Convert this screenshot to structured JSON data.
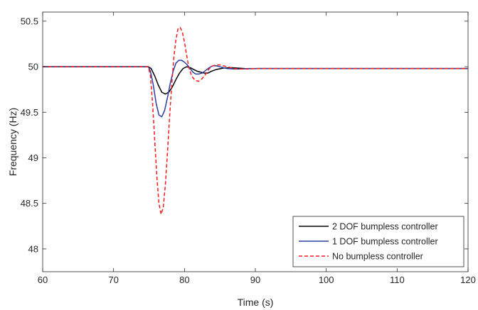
{
  "chart_data": {
    "type": "line",
    "title": "",
    "xlabel": "Time (s)",
    "ylabel": "Frequency (Hz)",
    "xlim": [
      60,
      120
    ],
    "ylim": [
      47.75,
      50.6
    ],
    "xticks": [
      "60",
      "70",
      "80",
      "90",
      "100",
      "110",
      "120"
    ],
    "yticks": [
      "48",
      "48.5",
      "49",
      "49.5",
      "50",
      "50.5"
    ],
    "xtick_values": [
      60,
      70,
      80,
      90,
      100,
      110,
      120
    ],
    "ytick_values": [
      48,
      48.5,
      49,
      49.5,
      50,
      50.5
    ],
    "grid": false,
    "legend_position": "bottom-right",
    "series": [
      {
        "name": "2 DOF bumpless controller",
        "color": "#000000",
        "dash": "solid",
        "x": [
          60,
          74.9,
          75.3,
          75.8,
          76.3,
          76.8,
          77.3,
          77.8,
          78.3,
          78.8,
          79.3,
          79.8,
          80.3,
          80.8,
          81.3,
          81.8,
          82.3,
          82.8,
          83.3,
          83.8,
          84.5,
          85.5,
          86.5,
          87.5,
          88.5,
          89.5,
          90.5,
          92,
          95,
          100,
          110,
          120
        ],
        "y": [
          50.0,
          50.0,
          49.98,
          49.9,
          49.8,
          49.72,
          49.7,
          49.72,
          49.78,
          49.86,
          49.93,
          49.98,
          50.0,
          49.99,
          49.97,
          49.95,
          49.94,
          49.93,
          49.93,
          49.95,
          49.97,
          49.985,
          49.99,
          49.985,
          49.98,
          49.978,
          49.98,
          49.98,
          49.98,
          49.98,
          49.98,
          49.98
        ]
      },
      {
        "name": "1 DOF bumpless controller",
        "color": "#2b3fa0",
        "dash": "solid",
        "x": [
          60,
          74.9,
          75.2,
          75.6,
          76.0,
          76.4,
          76.8,
          77.2,
          77.6,
          78.0,
          78.4,
          78.8,
          79.2,
          79.6,
          80.0,
          80.4,
          80.8,
          81.2,
          81.6,
          82.0,
          82.5,
          83.0,
          83.5,
          84.0,
          84.5,
          85.0,
          85.5,
          86.0,
          87.0,
          88.0,
          89.0,
          90.0,
          92,
          95,
          100,
          110,
          120
        ],
        "y": [
          50.0,
          50.0,
          49.95,
          49.8,
          49.6,
          49.47,
          49.45,
          49.52,
          49.66,
          49.82,
          49.95,
          50.04,
          50.07,
          50.07,
          50.05,
          50.02,
          49.98,
          49.94,
          49.92,
          49.92,
          49.93,
          49.96,
          49.99,
          50.01,
          50.01,
          50.0,
          49.99,
          49.98,
          49.975,
          49.975,
          49.98,
          49.98,
          49.98,
          49.98,
          49.98,
          49.98,
          49.98
        ]
      },
      {
        "name": "No bumpless controller",
        "color": "#ff1a1a",
        "dash": "dashed",
        "x": [
          60,
          74.9,
          75.2,
          75.5,
          75.8,
          76.1,
          76.4,
          76.7,
          77.0,
          77.3,
          77.6,
          77.9,
          78.2,
          78.5,
          78.8,
          79.1,
          79.4,
          79.7,
          80.0,
          80.3,
          80.6,
          81.0,
          81.5,
          82.0,
          82.5,
          83.0,
          83.5,
          84.0,
          84.5,
          85.0,
          85.5,
          86.0,
          87.0,
          88.0,
          89.0,
          90.0,
          92,
          95,
          100,
          110,
          120
        ],
        "y": [
          50.0,
          50.0,
          49.9,
          49.6,
          49.2,
          48.8,
          48.5,
          48.38,
          48.45,
          48.7,
          49.05,
          49.45,
          49.8,
          50.1,
          50.3,
          50.42,
          50.43,
          50.38,
          50.27,
          50.13,
          50.0,
          49.9,
          49.85,
          49.84,
          49.87,
          49.92,
          49.98,
          50.01,
          50.02,
          50.02,
          50.01,
          50.0,
          49.98,
          49.975,
          49.975,
          49.98,
          49.98,
          49.98,
          49.98,
          49.98,
          49.98
        ]
      }
    ]
  }
}
